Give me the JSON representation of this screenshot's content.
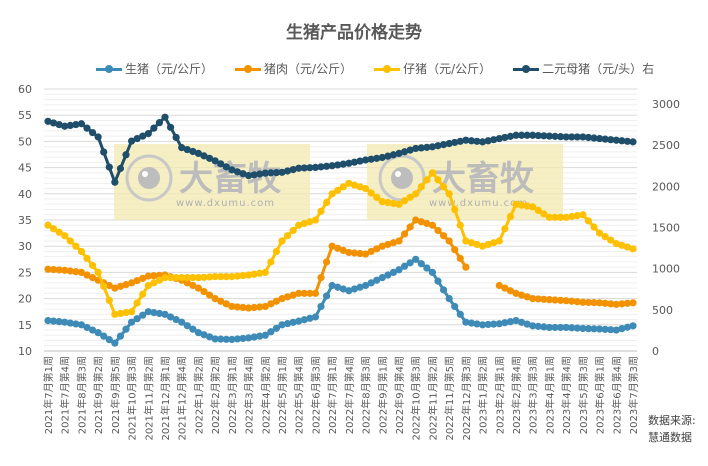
{
  "chart_data": {
    "type": "line",
    "title": "生猪产品价格走势",
    "xlabel": "",
    "ylabel_left": "",
    "ylabel_right": "",
    "ylim_left": [
      10,
      60
    ],
    "ylim_right": [
      0,
      3000
    ],
    "yticks_left": [
      10,
      15,
      20,
      25,
      30,
      35,
      40,
      45,
      50,
      55,
      60
    ],
    "yticks_right": [
      0,
      500,
      1000,
      1500,
      2000,
      2500,
      3000
    ],
    "grid": true,
    "legend_position": "top",
    "categories": [
      "2021年7月第1周",
      "2021年7月第4周",
      "2021年8月第3周",
      "2021年9月第2周",
      "2021年9月第5周",
      "2021年10月第3周",
      "2021年11月第2周",
      "2021年12月第1周",
      "2021年12月第4周",
      "2022年1月第2周",
      "2022年2月第2周",
      "2022年3月第1周",
      "2022年3月第4周",
      "2022年4月第2周",
      "2022年5月第1周",
      "2022年5月第4周",
      "2022年6月第3周",
      "2022年7月第1周",
      "2022年7月第4周",
      "2022年8月第3周",
      "2022年9月第1周",
      "2022年9月第4周",
      "2022年10月第3周",
      "2022年11月第2周",
      "2022年11月第5周",
      "2022年12月第3周",
      "2023年1月第2周",
      "2023年2月第1周",
      "2023年2月第4周",
      "2023年3月第3周",
      "2023年4月第1周",
      "2023年4月第4周",
      "2023年5月第3周",
      "2023年6月第1周",
      "2023年6月第4周",
      "2023年7月第3周"
    ],
    "series": [
      {
        "name": "生猪（元/公斤）",
        "axis": "left",
        "color": "#3E8BB8",
        "values": [
          15.8,
          15.5,
          15.0,
          13.5,
          11.5,
          15.5,
          17.5,
          17.0,
          15.5,
          13.5,
          12.3,
          12.2,
          12.5,
          13.0,
          15.0,
          15.7,
          16.5,
          22.5,
          21.5,
          22.5,
          24.0,
          25.5,
          27.5,
          25.0,
          20.0,
          15.5,
          15.0,
          15.2,
          15.8,
          14.8,
          14.5,
          14.5,
          14.3,
          14.2,
          14.0,
          14.8
        ]
      },
      {
        "name": "猪肉（元/公斤）",
        "axis": "left",
        "color": "#F39200",
        "values": [
          25.6,
          25.4,
          25.0,
          23.5,
          22.0,
          23.0,
          24.3,
          24.5,
          23.5,
          22.0,
          20.0,
          18.5,
          18.2,
          18.5,
          20.0,
          21.0,
          21.0,
          30.0,
          28.8,
          28.5,
          30.0,
          31.0,
          35.0,
          34.0,
          31.0,
          26.0,
          null,
          22.5,
          21.0,
          20.0,
          19.8,
          19.6,
          19.3,
          19.2,
          18.9,
          19.2
        ]
      },
      {
        "name": "仔猪（元/公斤）",
        "axis": "left",
        "color": "#FFC000",
        "values": [
          34.0,
          32.0,
          29.0,
          25.0,
          17.0,
          17.5,
          22.5,
          24.0,
          24.0,
          24.0,
          24.2,
          24.2,
          24.5,
          25.0,
          31.0,
          34.0,
          35.0,
          40.0,
          42.0,
          41.0,
          38.5,
          38.0,
          40.0,
          44.0,
          40.0,
          31.0,
          30.0,
          31.0,
          38.0,
          37.5,
          35.5,
          35.5,
          36.0,
          32.5,
          30.5,
          29.5
        ]
      },
      {
        "name": "二元母猪（元/头）右",
        "axis": "right",
        "color": "#1F4E6A",
        "values": [
          2790,
          2730,
          2760,
          2600,
          2050,
          2550,
          2640,
          2840,
          2470,
          2400,
          2310,
          2200,
          2130,
          2160,
          2170,
          2220,
          2230,
          2250,
          2280,
          2320,
          2350,
          2400,
          2460,
          2480,
          2520,
          2560,
          2540,
          2580,
          2620,
          2620,
          2610,
          2600,
          2600,
          2580,
          2560,
          2540
        ]
      }
    ]
  },
  "legend": [
    {
      "label": "生猪（元/公斤）",
      "color": "#3E8BB8"
    },
    {
      "label": "猪肉（元/公斤）",
      "color": "#F39200"
    },
    {
      "label": "仔猪（元/公斤）",
      "color": "#FFC000"
    },
    {
      "label": "二元母猪（元/头）右",
      "color": "#1F4E6A"
    }
  ],
  "watermark": {
    "text": "大畜牧",
    "url_text": "www.dxumu.com"
  },
  "source": {
    "line1": "数据来源:",
    "line2": "慧通数据"
  }
}
